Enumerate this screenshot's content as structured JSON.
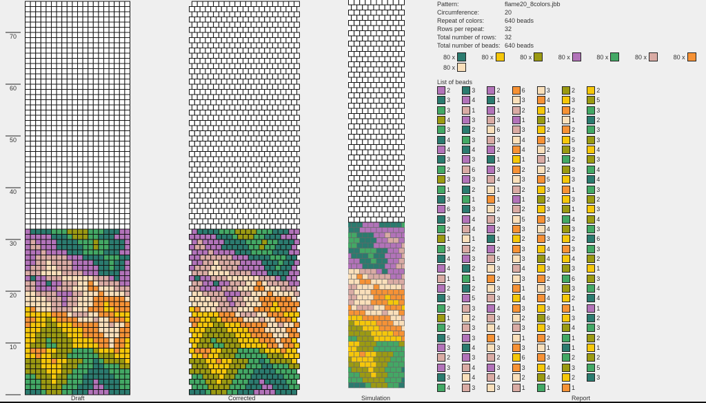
{
  "palette": {
    "T": {
      "name": "teal",
      "hex": "#2b7b6f"
    },
    "Y": {
      "name": "yellow",
      "hex": "#f5c70a"
    },
    "V": {
      "name": "olive",
      "hex": "#9b9a12"
    },
    "P": {
      "name": "purple",
      "hex": "#b273b9"
    },
    "G": {
      "name": "green",
      "hex": "#43a865"
    },
    "R": {
      "name": "rose",
      "hex": "#d9aba4"
    },
    "O": {
      "name": "orange",
      "hex": "#f69235"
    },
    "C": {
      "name": "cream",
      "hex": "#f9dfba"
    }
  },
  "ruler": {
    "labels": [
      "10",
      "20",
      "30",
      "40",
      "50",
      "60",
      "70"
    ]
  },
  "views": {
    "draft": "Draft",
    "corrected": "Corrected",
    "simulation": "Simulation",
    "report": "Report"
  },
  "report": {
    "rows": [
      {
        "label": "Pattern:",
        "value": "flame20_8colors.jbb"
      },
      {
        "label": "Circumference:",
        "value": "20"
      },
      {
        "label": "Repeat of colors:",
        "value": "640 beads"
      },
      {
        "label": "Rows per repeat:",
        "value": "32"
      },
      {
        "label": "Total number of rows:",
        "value": "32"
      },
      {
        "label": "Total number of beads:",
        "value": "640 beads"
      }
    ],
    "color_counts": [
      {
        "text": "80 x",
        "color": "T"
      },
      {
        "text": "80 x",
        "color": "Y"
      },
      {
        "text": "80 x",
        "color": "V"
      },
      {
        "text": "80 x",
        "color": "P"
      },
      {
        "text": "80 x",
        "color": "G"
      },
      {
        "text": "80 x",
        "color": "R"
      },
      {
        "text": "80 x",
        "color": "O"
      },
      {
        "text": "80 x",
        "color": "C"
      }
    ],
    "list_title": "List of beads",
    "bead_list_columns": [
      [
        "P2",
        "T3",
        "G3",
        "V4",
        "G3",
        "T4",
        "P4",
        "T3",
        "G2",
        "V3",
        "G1",
        "T3",
        "P6",
        "T3",
        "G2",
        "V1",
        "G3",
        "T4",
        "P4",
        "R1",
        "P2",
        "T3",
        "G2",
        "V1",
        "G2",
        "T5",
        "P3",
        "R2",
        "P3",
        "T3",
        "G4"
      ],
      [
        "T3",
        "P4",
        "R1",
        "P3",
        "T2",
        "G3",
        "T4",
        "P3",
        "R6",
        "P3",
        "T2",
        "G1",
        "T3",
        "P4",
        "R4",
        "C1",
        "R2",
        "P3",
        "T2",
        "G1",
        "T2",
        "P5",
        "R3",
        "C2",
        "R3",
        "P3",
        "T4",
        "P3",
        "R4",
        "C4",
        "R3"
      ],
      [
        "P2",
        "T1",
        "P1",
        "R3",
        "C6",
        "R3",
        "P2",
        "T1",
        "P3",
        "R4",
        "C1",
        "O1",
        "C2",
        "R3",
        "P2",
        "T1",
        "P2",
        "R5",
        "C3",
        "O2",
        "C3",
        "R3",
        "P4",
        "R3",
        "C4",
        "O1",
        "C3",
        "R2",
        "P3",
        "R4",
        "C3"
      ],
      [
        "O6",
        "C3",
        "R2",
        "P1",
        "R3",
        "C4",
        "O4",
        "Y1",
        "O2",
        "C3",
        "R2",
        "P1",
        "R2",
        "C5",
        "O3",
        "Y2",
        "O3",
        "C3",
        "R4",
        "C3",
        "O1",
        "Y4",
        "O3",
        "C2",
        "R3",
        "C1",
        "O3",
        "Y6",
        "O3",
        "C2",
        "R1"
      ],
      [
        "C3",
        "O4",
        "Y1",
        "V1",
        "Y2",
        "O3",
        "C2",
        "R1",
        "C2",
        "O5",
        "Y3",
        "V2",
        "Y3",
        "O3",
        "C4",
        "O3",
        "Y4",
        "V4",
        "Y3",
        "O2",
        "C3",
        "O4",
        "Y3",
        "V6",
        "Y3",
        "O2",
        "C1",
        "O3",
        "Y4",
        "V4",
        "G1"
      ],
      [
        "V2",
        "Y3",
        "O2",
        "C1",
        "O2",
        "Y5",
        "V3",
        "G2",
        "V3",
        "Y3",
        "O1",
        "Y3",
        "V1",
        "G4",
        "V3",
        "Y2",
        "O3",
        "Y4",
        "V3",
        "G6",
        "V3",
        "Y2",
        "O1",
        "Y3",
        "V4",
        "G1",
        "T1",
        "G2",
        "V3",
        "Y2",
        "O1"
      ],
      [
        "Y2",
        "V5",
        "G3",
        "T2",
        "G3",
        "V3",
        "Y4",
        "V3",
        "G4",
        "T4",
        "G3",
        "V2",
        "Y3",
        "V4",
        "G3",
        "T6",
        "G3",
        "V2",
        "Y1",
        "V3",
        "G4",
        "T4",
        "P1",
        "T2",
        "G3",
        "V2",
        "Y1",
        "V2",
        "G5",
        "T3"
      ]
    ]
  }
}
